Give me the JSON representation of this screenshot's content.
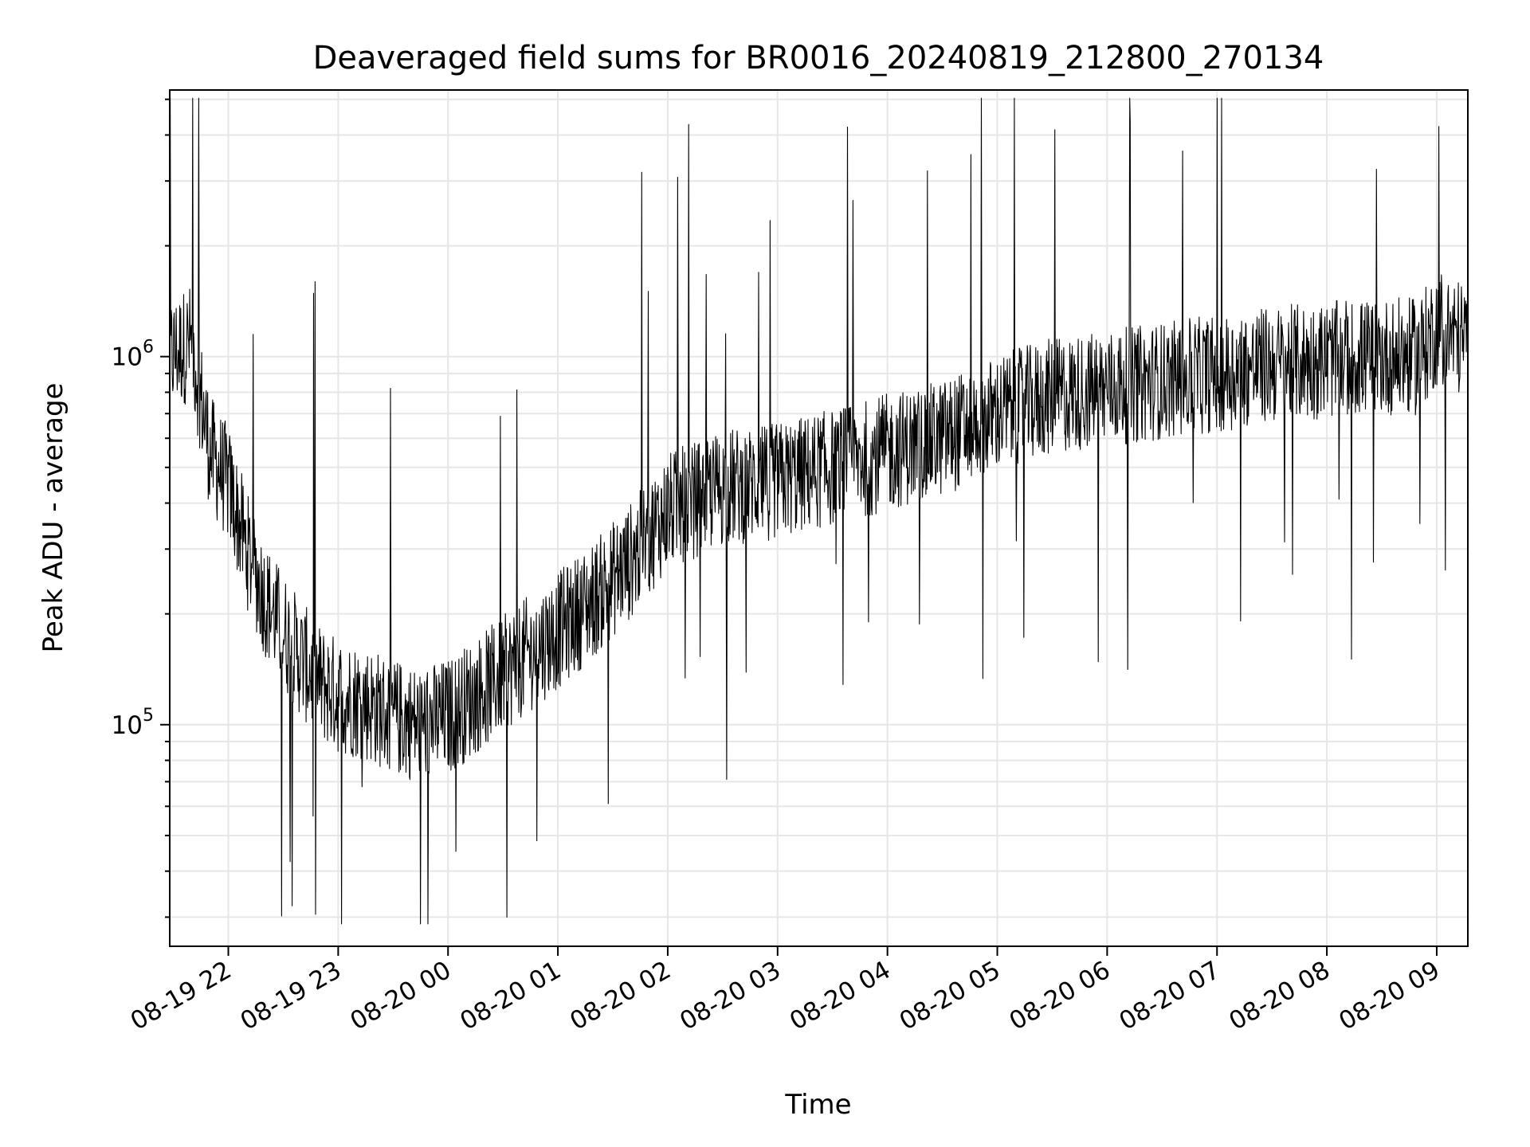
{
  "chart_data": {
    "type": "line",
    "title": "Deaveraged field sums for BR0016_20240819_212800_270134",
    "xlabel": "Time",
    "ylabel": "Peak ADU - average",
    "xlim": [
      "2024-08-19 21:28",
      "2024-08-20 09:17"
    ],
    "ylim": [
      25000,
      5300000
    ],
    "yscale": "log",
    "grid": true,
    "line_color": "#000000",
    "grid_color": "#e6e6e6",
    "x_ticks": [
      {
        "t": "2024-08-19 22:00",
        "label": "08-19 22"
      },
      {
        "t": "2024-08-19 23:00",
        "label": "08-19 23"
      },
      {
        "t": "2024-08-20 00:00",
        "label": "08-20 00"
      },
      {
        "t": "2024-08-20 01:00",
        "label": "08-20 01"
      },
      {
        "t": "2024-08-20 02:00",
        "label": "08-20 02"
      },
      {
        "t": "2024-08-20 03:00",
        "label": "08-20 03"
      },
      {
        "t": "2024-08-20 04:00",
        "label": "08-20 04"
      },
      {
        "t": "2024-08-20 05:00",
        "label": "08-20 05"
      },
      {
        "t": "2024-08-20 06:00",
        "label": "08-20 06"
      },
      {
        "t": "2024-08-20 07:00",
        "label": "08-20 07"
      },
      {
        "t": "2024-08-20 08:00",
        "label": "08-20 08"
      },
      {
        "t": "2024-08-20 09:00",
        "label": "08-20 09"
      }
    ],
    "y_ticks": [
      {
        "value": 100000,
        "base": "10",
        "exp": "5"
      },
      {
        "value": 1000000,
        "base": "10",
        "exp": "6"
      }
    ],
    "series": [
      {
        "values_note_free": true,
        "x": [
          "2024-08-19 21:28",
          "2024-08-19 21:40",
          "2024-08-19 21:50",
          "2024-08-19 22:00",
          "2024-08-19 22:10",
          "2024-08-19 22:20",
          "2024-08-19 22:30",
          "2024-08-19 22:40",
          "2024-08-19 22:50",
          "2024-08-19 23:00",
          "2024-08-19 23:15",
          "2024-08-19 23:30",
          "2024-08-19 23:45",
          "2024-08-20 00:00",
          "2024-08-20 00:20",
          "2024-08-20 00:40",
          "2024-08-20 01:00",
          "2024-08-20 01:20",
          "2024-08-20 01:40",
          "2024-08-20 02:00",
          "2024-08-20 02:30",
          "2024-08-20 03:00",
          "2024-08-20 03:30",
          "2024-08-20 04:00",
          "2024-08-20 04:30",
          "2024-08-20 05:00",
          "2024-08-20 05:30",
          "2024-08-20 06:00",
          "2024-08-20 06:30",
          "2024-08-20 07:00",
          "2024-08-20 07:30",
          "2024-08-20 08:00",
          "2024-08-20 08:30",
          "2024-08-20 08:50",
          "2024-08-20 09:00",
          "2024-08-20 09:17"
        ],
        "y": [
          1000000,
          1100000,
          550000,
          450000,
          300000,
          220000,
          180000,
          150000,
          130000,
          120000,
          115000,
          105000,
          100000,
          105000,
          125000,
          150000,
          180000,
          220000,
          280000,
          380000,
          440000,
          460000,
          500000,
          550000,
          600000,
          700000,
          780000,
          820000,
          860000,
          900000,
          950000,
          980000,
          1000000,
          1000000,
          1200000,
          1100000
        ]
      }
    ]
  }
}
